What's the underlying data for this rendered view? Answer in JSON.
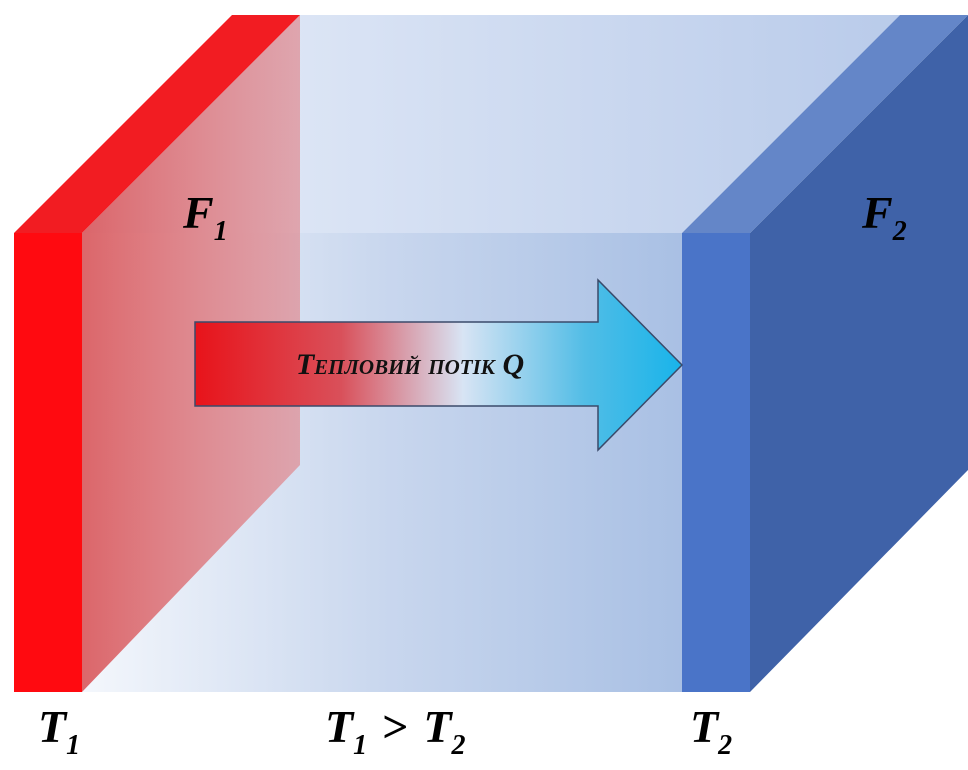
{
  "labels": {
    "f1": {
      "symbol": "F",
      "subscript": "1"
    },
    "f2": {
      "symbol": "F",
      "subscript": "2"
    },
    "t1": {
      "symbol": "T",
      "subscript": "1"
    },
    "t2": {
      "symbol": "T",
      "subscript": "2"
    },
    "condition": {
      "left": {
        "symbol": "T",
        "subscript": "1"
      },
      "operator": ">",
      "right": {
        "symbol": "T",
        "subscript": "2"
      }
    },
    "arrow": "Тепловий потік Q"
  }
}
